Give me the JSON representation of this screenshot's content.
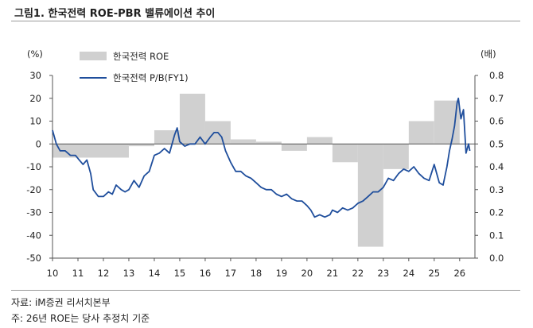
{
  "title": "그림1.  한국전력 ROE-PBR 밸류에이션 추이",
  "source": "자료: iM증권 리서치본부",
  "footnote": "주: 26년 ROE는 당사 추정치 기준",
  "colors": {
    "bar": "#d0d0d0",
    "line": "#1f4e9c"
  },
  "chart_data": {
    "type": "bar+line",
    "left_unit": "(%)",
    "right_unit": "(배)",
    "x_ticks": [
      "10",
      "11",
      "12",
      "13",
      "14",
      "15",
      "16",
      "17",
      "18",
      "19",
      "20",
      "21",
      "22",
      "23",
      "24",
      "25",
      "26"
    ],
    "y_left": {
      "lim": [
        -50,
        30
      ],
      "ticks": [
        30,
        20,
        10,
        0,
        -10,
        -20,
        -30,
        -40,
        -50
      ]
    },
    "y_right": {
      "lim": [
        0.0,
        0.8
      ],
      "ticks": [
        "0.8",
        "0.7",
        "0.6",
        "0.5",
        "0.4",
        "0.3",
        "0.2",
        "0.1",
        "0.0"
      ]
    },
    "legend": "top-left",
    "series": [
      {
        "name": "한국전력 ROE",
        "kind": "bar",
        "axis": "left",
        "x_start": [
          2010,
          2011,
          2012,
          2013,
          2014,
          2015,
          2016,
          2017,
          2018,
          2019,
          2020,
          2021,
          2022,
          2023,
          2024,
          2025
        ],
        "values": [
          -6,
          -6,
          -6,
          -1,
          6,
          22,
          10,
          2,
          1,
          -3,
          3,
          -8,
          -45,
          -11,
          10,
          19
        ]
      },
      {
        "name": "한국전력 P/B(FY1)",
        "kind": "line",
        "axis": "right",
        "points": [
          [
            2010.0,
            0.56
          ],
          [
            2010.15,
            0.5
          ],
          [
            2010.3,
            0.47
          ],
          [
            2010.5,
            0.47
          ],
          [
            2010.7,
            0.45
          ],
          [
            2010.9,
            0.45
          ],
          [
            2011.05,
            0.43
          ],
          [
            2011.2,
            0.41
          ],
          [
            2011.35,
            0.43
          ],
          [
            2011.5,
            0.37
          ],
          [
            2011.6,
            0.3
          ],
          [
            2011.8,
            0.27
          ],
          [
            2012.0,
            0.27
          ],
          [
            2012.2,
            0.29
          ],
          [
            2012.35,
            0.28
          ],
          [
            2012.5,
            0.32
          ],
          [
            2012.7,
            0.3
          ],
          [
            2012.85,
            0.29
          ],
          [
            2013.0,
            0.3
          ],
          [
            2013.2,
            0.34
          ],
          [
            2013.4,
            0.31
          ],
          [
            2013.6,
            0.36
          ],
          [
            2013.8,
            0.38
          ],
          [
            2014.0,
            0.45
          ],
          [
            2014.2,
            0.46
          ],
          [
            2014.4,
            0.48
          ],
          [
            2014.6,
            0.46
          ],
          [
            2014.8,
            0.54
          ],
          [
            2014.9,
            0.57
          ],
          [
            2015.0,
            0.51
          ],
          [
            2015.2,
            0.49
          ],
          [
            2015.4,
            0.5
          ],
          [
            2015.6,
            0.5
          ],
          [
            2015.8,
            0.53
          ],
          [
            2016.0,
            0.5
          ],
          [
            2016.2,
            0.53
          ],
          [
            2016.35,
            0.55
          ],
          [
            2016.5,
            0.55
          ],
          [
            2016.65,
            0.53
          ],
          [
            2016.8,
            0.47
          ],
          [
            2017.0,
            0.42
          ],
          [
            2017.2,
            0.38
          ],
          [
            2017.4,
            0.38
          ],
          [
            2017.6,
            0.36
          ],
          [
            2017.8,
            0.35
          ],
          [
            2018.0,
            0.33
          ],
          [
            2018.2,
            0.31
          ],
          [
            2018.4,
            0.3
          ],
          [
            2018.6,
            0.3
          ],
          [
            2018.8,
            0.28
          ],
          [
            2019.0,
            0.27
          ],
          [
            2019.2,
            0.28
          ],
          [
            2019.4,
            0.26
          ],
          [
            2019.6,
            0.25
          ],
          [
            2019.8,
            0.25
          ],
          [
            2020.0,
            0.23
          ],
          [
            2020.15,
            0.21
          ],
          [
            2020.3,
            0.18
          ],
          [
            2020.5,
            0.19
          ],
          [
            2020.7,
            0.18
          ],
          [
            2020.9,
            0.19
          ],
          [
            2021.0,
            0.21
          ],
          [
            2021.2,
            0.2
          ],
          [
            2021.4,
            0.22
          ],
          [
            2021.6,
            0.21
          ],
          [
            2021.8,
            0.22
          ],
          [
            2022.0,
            0.24
          ],
          [
            2022.2,
            0.25
          ],
          [
            2022.4,
            0.27
          ],
          [
            2022.6,
            0.29
          ],
          [
            2022.8,
            0.29
          ],
          [
            2023.0,
            0.31
          ],
          [
            2023.2,
            0.35
          ],
          [
            2023.4,
            0.34
          ],
          [
            2023.6,
            0.37
          ],
          [
            2023.8,
            0.39
          ],
          [
            2024.0,
            0.38
          ],
          [
            2024.2,
            0.4
          ],
          [
            2024.4,
            0.37
          ],
          [
            2024.6,
            0.35
          ],
          [
            2024.8,
            0.34
          ],
          [
            2025.0,
            0.41
          ],
          [
            2025.2,
            0.33
          ],
          [
            2025.35,
            0.32
          ],
          [
            2025.5,
            0.4
          ],
          [
            2025.6,
            0.47
          ],
          [
            2025.7,
            0.52
          ],
          [
            2025.8,
            0.58
          ],
          [
            2025.9,
            0.68
          ],
          [
            2025.95,
            0.7
          ],
          [
            2026.05,
            0.61
          ],
          [
            2026.15,
            0.65
          ],
          [
            2026.25,
            0.46
          ],
          [
            2026.35,
            0.5
          ],
          [
            2026.4,
            0.47
          ]
        ]
      }
    ]
  }
}
